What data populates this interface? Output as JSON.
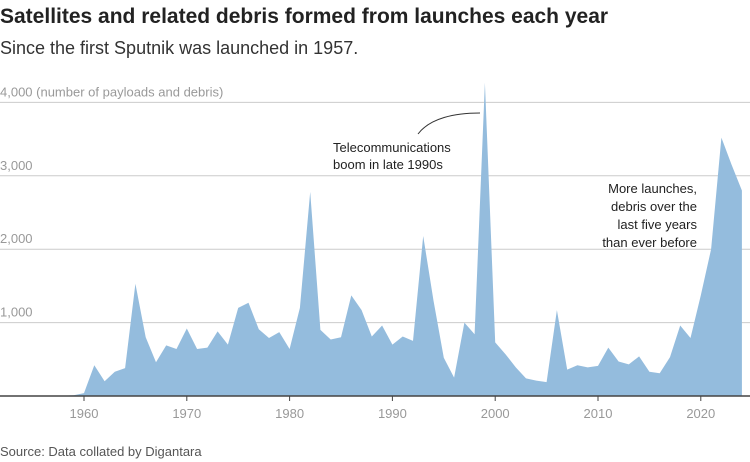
{
  "title": "Satellites and related debris formed from launches each year",
  "subtitle": "Since the first Sputnik was launched in 1957.",
  "source": "Source: Data collated by Digantara",
  "chart_data": {
    "type": "area",
    "title": "Satellites and related debris formed from launches each year",
    "ylabel": "(number of payloads and debris)",
    "ylim": [
      0,
      4000
    ],
    "xlim": [
      1957,
      2024
    ],
    "yticks": [
      "1,000",
      "2,000",
      "3,000",
      "4,000"
    ],
    "ytick_values": [
      1000,
      2000,
      3000,
      4000
    ],
    "ytop_label": "4,000 (number of payloads and debris)",
    "xticks": [
      1960,
      1970,
      1980,
      1990,
      2000,
      2010,
      2020
    ],
    "grid": true,
    "color": "#94bcdd",
    "x": [
      1957,
      1958,
      1959,
      1960,
      1961,
      1962,
      1963,
      1964,
      1965,
      1966,
      1967,
      1968,
      1969,
      1970,
      1971,
      1972,
      1973,
      1974,
      1975,
      1976,
      1977,
      1978,
      1979,
      1980,
      1981,
      1982,
      1983,
      1984,
      1985,
      1986,
      1987,
      1988,
      1989,
      1990,
      1991,
      1992,
      1993,
      1994,
      1995,
      1996,
      1997,
      1998,
      1999,
      2000,
      2001,
      2002,
      2003,
      2004,
      2005,
      2006,
      2007,
      2008,
      2009,
      2010,
      2011,
      2012,
      2013,
      2014,
      2015,
      2016,
      2017,
      2018,
      2019,
      2020,
      2021,
      2022,
      2023,
      2024
    ],
    "values": [
      0,
      5,
      10,
      40,
      420,
      200,
      330,
      380,
      1530,
      800,
      460,
      690,
      640,
      920,
      640,
      660,
      880,
      700,
      1200,
      1270,
      910,
      790,
      870,
      640,
      1200,
      2780,
      900,
      770,
      800,
      1370,
      1170,
      810,
      960,
      700,
      810,
      750,
      2180,
      1300,
      520,
      250,
      1000,
      840,
      4270,
      730,
      570,
      390,
      240,
      210,
      190,
      1170,
      360,
      420,
      390,
      410,
      660,
      470,
      430,
      540,
      330,
      310,
      530,
      960,
      790,
      1370,
      2000,
      3520,
      3150,
      2800
    ],
    "annotations": [
      {
        "lines": [
          "Telecommunications",
          "boom in late 1990s"
        ]
      },
      {
        "lines": [
          "More launches,",
          "debris over the",
          "last five years",
          "than ever before"
        ]
      }
    ]
  }
}
